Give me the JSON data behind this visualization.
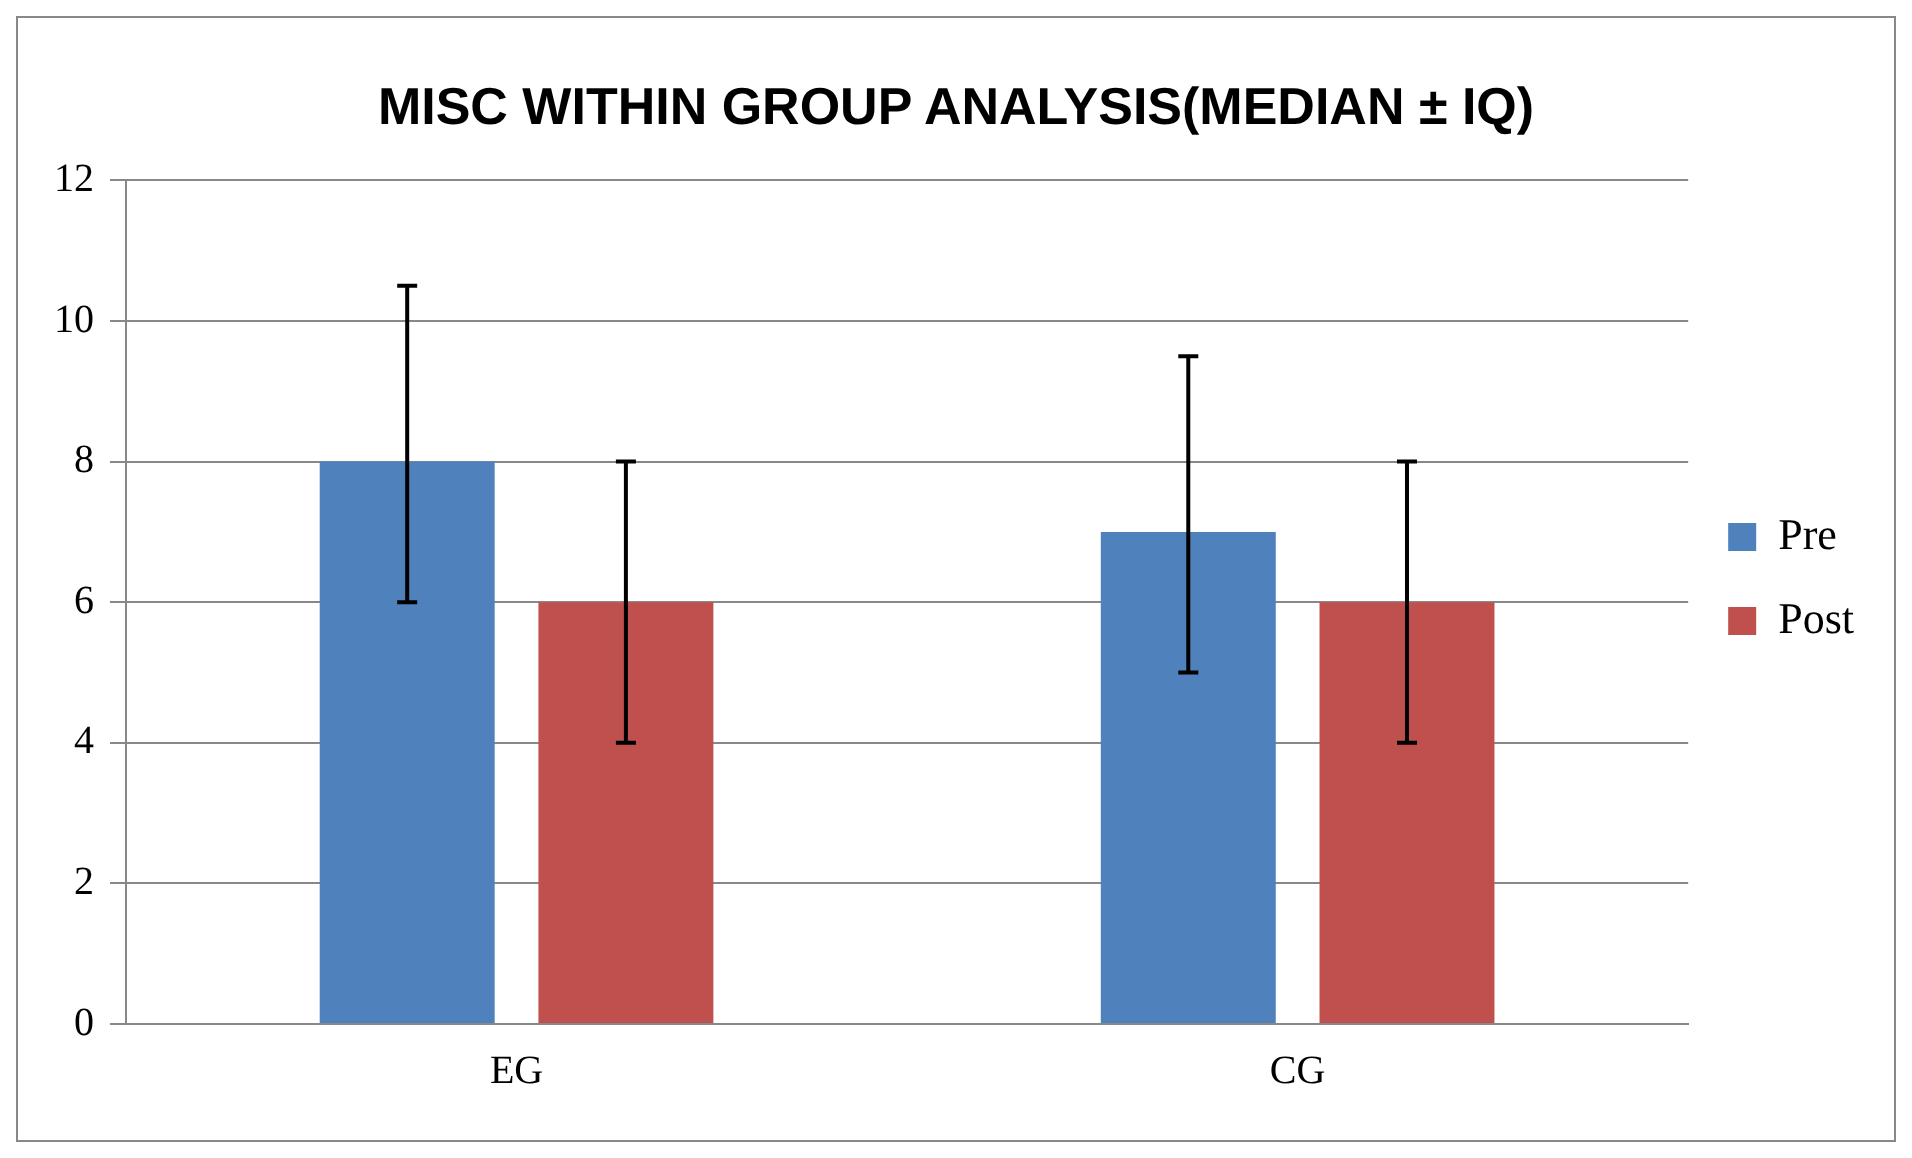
{
  "chart_data": {
    "type": "bar",
    "title": "MISC WITHIN GROUP ANALYSIS(MEDIAN ± IQ)",
    "categories": [
      "EG",
      "CG"
    ],
    "series": [
      {
        "name": "Pre",
        "color": "#4f81bd",
        "values": [
          8,
          7
        ],
        "errors": [
          [
            6,
            10.5
          ],
          [
            5,
            9.5
          ]
        ]
      },
      {
        "name": "Post",
        "color": "#c0504d",
        "values": [
          6,
          6
        ],
        "errors": [
          [
            4,
            8
          ],
          [
            4,
            8
          ]
        ]
      }
    ],
    "ylim": [
      0,
      12
    ],
    "yticks": [
      0,
      2,
      4,
      6,
      8,
      10,
      12
    ],
    "grid": "y",
    "legend": "right"
  }
}
